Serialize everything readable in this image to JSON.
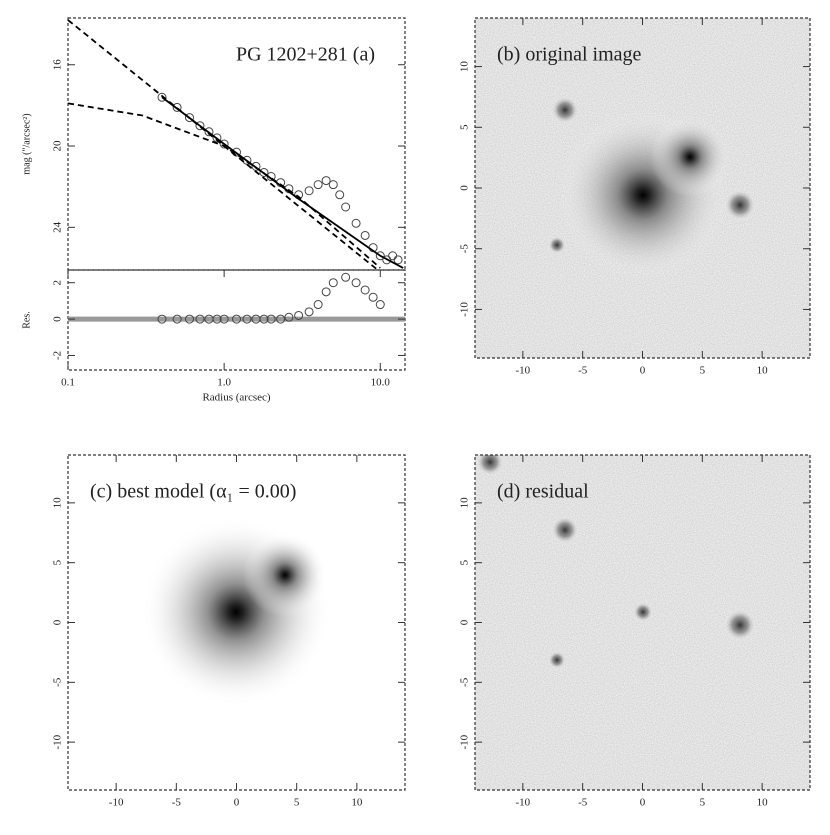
{
  "chart_data": [
    {
      "type": "line",
      "title": "PG 1202+281 (a)",
      "ylabel": "mag (\"/arcsec²)",
      "xlog": true,
      "y_inverted": true,
      "xlim": [
        0.1,
        14.4
      ],
      "ylim": [
        13.7,
        26.1
      ],
      "yticks": [
        16,
        20,
        24
      ],
      "series": [
        {
          "style": "markers",
          "color": "#444444",
          "x": [
            0.4,
            0.5,
            0.6,
            0.7,
            0.8,
            0.9,
            1.0,
            1.2,
            1.4,
            1.6,
            1.8,
            2.0,
            2.3,
            2.6,
            3.0,
            3.5,
            4.0,
            4.5,
            5.0,
            5.5,
            6.0,
            7.0,
            8.0,
            9.0,
            10.0,
            11.0,
            12.0,
            13.0
          ],
          "values": [
            17.6,
            18.1,
            18.6,
            19.0,
            19.3,
            19.6,
            19.9,
            20.3,
            20.7,
            21.0,
            21.3,
            21.5,
            21.8,
            22.1,
            22.4,
            22.2,
            21.9,
            21.7,
            21.9,
            22.4,
            23.0,
            23.8,
            24.4,
            25.0,
            25.4,
            25.6,
            25.4,
            25.6
          ]
        },
        {
          "style": "solid",
          "color": "#000000",
          "x": [
            0.4,
            1.0,
            3.0,
            10.0,
            14.0
          ],
          "values": [
            17.6,
            19.9,
            22.6,
            25.4,
            26.0
          ]
        },
        {
          "style": "dashed",
          "color": "#000000",
          "x": [
            0.1,
            1.0,
            10.0
          ],
          "values": [
            13.8,
            20.0,
            26.2
          ]
        },
        {
          "style": "dashed",
          "color": "#000000",
          "x": [
            0.1,
            0.3,
            1.0,
            3.0,
            10.0
          ],
          "values": [
            17.9,
            18.5,
            20.0,
            22.5,
            26.0
          ]
        }
      ]
    },
    {
      "type": "line",
      "ylabel": "Res.",
      "xlabel": "Radius (arcsec)",
      "xlog": true,
      "xlim": [
        0.1,
        14.4
      ],
      "ylim": [
        -2.8,
        2.7
      ],
      "yticks": [
        -2,
        0,
        2
      ],
      "hlines": [
        0
      ],
      "xticks": [
        {
          "value": 0.1,
          "label": "0.1"
        },
        {
          "value": 1,
          "label": "1.0"
        },
        {
          "value": 10,
          "label": "10.0"
        }
      ],
      "series": [
        {
          "style": "markers",
          "color": "#444444",
          "x": [
            0.4,
            0.5,
            0.6,
            0.7,
            0.8,
            0.9,
            1.0,
            1.2,
            1.4,
            1.6,
            1.8,
            2.0,
            2.3,
            2.6,
            3.0,
            3.5,
            4.0,
            4.5,
            5.0,
            6.0,
            7.0,
            8.0,
            9.0,
            10.0
          ],
          "values": [
            0,
            0,
            0,
            0,
            0,
            0,
            0,
            0,
            0,
            0,
            0,
            0,
            0,
            0.1,
            0.2,
            0.4,
            0.8,
            1.5,
            2.0,
            2.3,
            2.0,
            1.6,
            1.2,
            0.8
          ]
        }
      ]
    },
    {
      "type": "image",
      "title": "(b) original image",
      "xlim": [
        -14,
        14
      ],
      "ylim": [
        -14,
        14
      ],
      "xticks": [
        -10,
        -5,
        0,
        5,
        10
      ],
      "yticks": [
        -10,
        -5,
        0,
        5,
        10
      ]
    },
    {
      "type": "image",
      "title": "(c) best model (α₁ = 0.00)",
      "xlim": [
        -14,
        14
      ],
      "ylim": [
        -14,
        14
      ],
      "xticks": [
        -10,
        -5,
        0,
        5,
        10
      ],
      "yticks": [
        -10,
        -5,
        0,
        5,
        10
      ]
    },
    {
      "type": "image",
      "title": "(d) residual",
      "xlim": [
        -14,
        14
      ],
      "ylim": [
        -14,
        14
      ],
      "xticks": [
        -10,
        -5,
        0,
        5,
        10
      ],
      "yticks": [
        -10,
        -5,
        0,
        5,
        10
      ]
    }
  ]
}
